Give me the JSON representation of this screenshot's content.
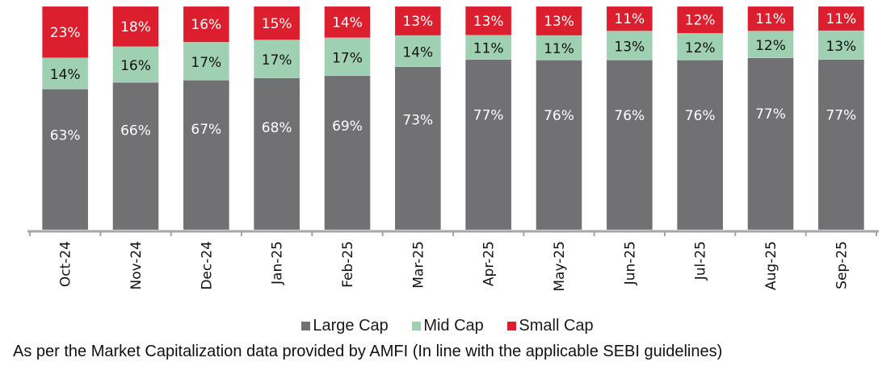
{
  "chart_data": {
    "type": "bar",
    "stacked": true,
    "title": "",
    "xlabel": "",
    "ylabel": "",
    "ylim": [
      0,
      100
    ],
    "grid": false,
    "legend_position": "bottom",
    "categories": [
      "Oct-24",
      "Nov-24",
      "Dec-24",
      "Jan-25",
      "Feb-25",
      "Mar-25",
      "Apr-25",
      "May-25",
      "Jun-25",
      "Jul-25",
      "Aug-25",
      "Sep-25"
    ],
    "series": [
      {
        "name": "Large Cap",
        "color": "#717073",
        "label_color": "#ffffff",
        "values": [
          63,
          66,
          67,
          68,
          69,
          73,
          77,
          76,
          76,
          76,
          77,
          77
        ]
      },
      {
        "name": "Mid Cap",
        "color": "#a0d0b2",
        "label_color": "#111111",
        "values": [
          14,
          16,
          17,
          17,
          17,
          14,
          11,
          11,
          13,
          12,
          12,
          13
        ]
      },
      {
        "name": "Small Cap",
        "color": "#dc1f2e",
        "label_color": "#ffffff",
        "values": [
          23,
          18,
          16,
          15,
          14,
          13,
          13,
          13,
          11,
          12,
          11,
          11
        ]
      }
    ],
    "value_suffix": "%"
  },
  "legend": {
    "items": [
      {
        "label": "Large Cap",
        "color": "#717073"
      },
      {
        "label": "Mid Cap",
        "color": "#a0d0b2"
      },
      {
        "label": "Small Cap",
        "color": "#dc1f2e"
      }
    ]
  },
  "footnote": "As per the Market Capitalization data provided by AMFI (In line with the applicable SEBI guidelines)"
}
